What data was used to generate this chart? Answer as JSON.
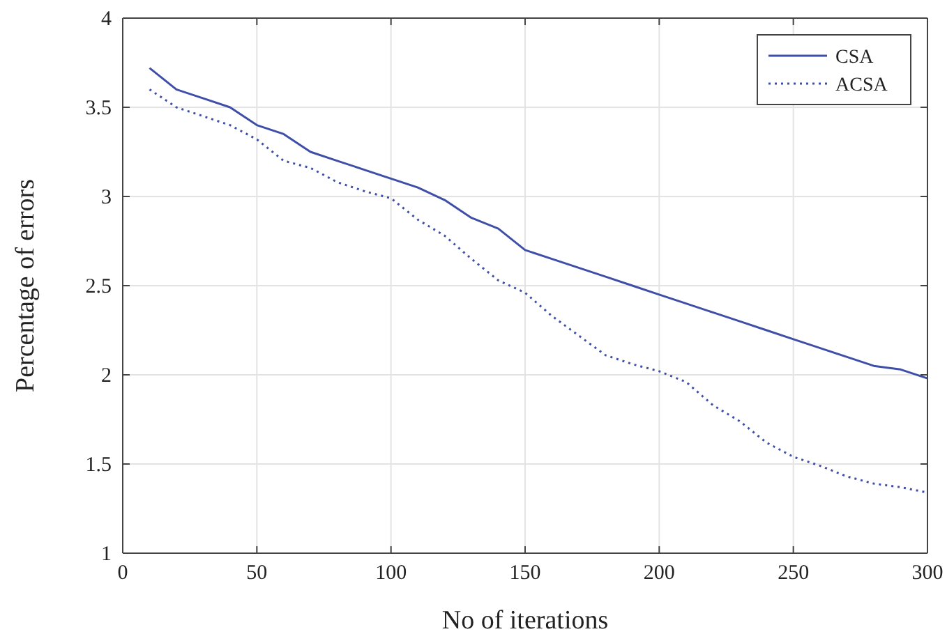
{
  "chart_data": {
    "type": "line",
    "xlabel": "No of iterations",
    "ylabel": "Percentage of errors",
    "x": [
      10,
      20,
      30,
      40,
      50,
      60,
      70,
      80,
      90,
      100,
      110,
      120,
      130,
      140,
      150,
      160,
      170,
      180,
      190,
      200,
      210,
      220,
      230,
      240,
      250,
      260,
      270,
      280,
      290,
      300
    ],
    "series": [
      {
        "name": "CSA",
        "color": "#3f4fa8",
        "line_style": "solid",
        "values": [
          3.72,
          3.6,
          3.55,
          3.5,
          3.4,
          3.35,
          3.25,
          3.2,
          3.15,
          3.1,
          3.05,
          2.98,
          2.88,
          2.82,
          2.7,
          2.65,
          2.6,
          2.55,
          2.5,
          2.45,
          2.4,
          2.35,
          2.3,
          2.25,
          2.2,
          2.15,
          2.1,
          2.05,
          2.03,
          1.98
        ]
      },
      {
        "name": "ACSA",
        "color": "#3f4fa8",
        "line_style": "dotted",
        "values": [
          3.6,
          3.5,
          3.45,
          3.4,
          3.32,
          3.2,
          3.16,
          3.08,
          3.03,
          2.99,
          2.87,
          2.78,
          2.65,
          2.53,
          2.46,
          2.33,
          2.22,
          2.11,
          2.06,
          2.02,
          1.96,
          1.83,
          1.74,
          1.62,
          1.54,
          1.49,
          1.43,
          1.39,
          1.37,
          1.34
        ]
      }
    ],
    "xlim": [
      0,
      300
    ],
    "xticks": [
      0,
      50,
      100,
      150,
      200,
      250,
      300
    ],
    "ylim": [
      1,
      4
    ],
    "yticks": [
      1,
      1.5,
      2,
      2.5,
      3,
      3.5,
      4
    ],
    "grid": true,
    "legend": "top right"
  }
}
